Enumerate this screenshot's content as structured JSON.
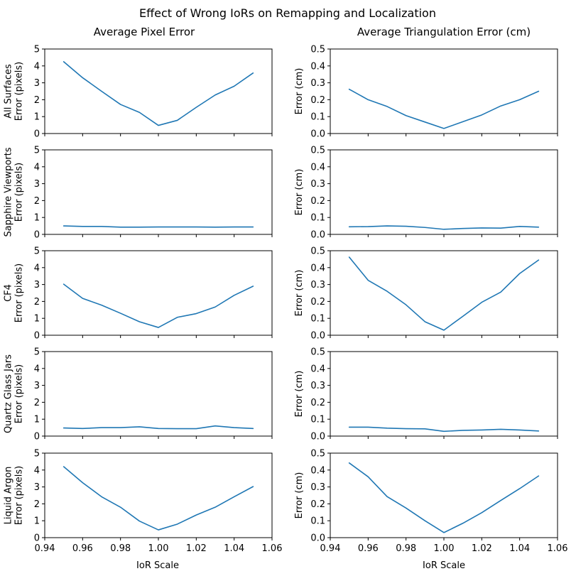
{
  "suptitle": "Effect of Wrong IoRs on Remapping and Localization",
  "column_titles": [
    "Average Pixel Error",
    "Average Triangulation Error (cm)"
  ],
  "x_axis_label": "IoR Scale",
  "colors": {
    "line": "#1f77b4",
    "axes": "#000000",
    "background": "#ffffff"
  },
  "chart_data": [
    {
      "type": "line",
      "row": "All Surfaces",
      "column": "Average Pixel Error",
      "ylabel": [
        "All Surfaces",
        "Error (pixels)"
      ],
      "xlim": [
        0.94,
        1.06
      ],
      "ylim": [
        0,
        5
      ],
      "xticks": [
        "0.94",
        "0.96",
        "0.98",
        "1.00",
        "1.02",
        "1.04",
        "1.06"
      ],
      "yticks": [
        "0",
        "1",
        "2",
        "3",
        "4",
        "5"
      ],
      "show_x_ticklabels": false,
      "grid": false,
      "x": [
        0.95,
        0.96,
        0.97,
        0.98,
        0.99,
        1.0,
        1.01,
        1.02,
        1.03,
        1.04,
        1.05
      ],
      "y": [
        4.25,
        3.3,
        2.5,
        1.72,
        1.25,
        0.48,
        0.78,
        1.55,
        2.28,
        2.8,
        3.58
      ]
    },
    {
      "type": "line",
      "row": "All Surfaces",
      "column": "Average Triangulation Error (cm)",
      "ylabel": [
        "Error (cm)"
      ],
      "xlim": [
        0.94,
        1.06
      ],
      "ylim": [
        0,
        0.5
      ],
      "xticks": [
        "0.94",
        "0.96",
        "0.98",
        "1.00",
        "1.02",
        "1.04",
        "1.06"
      ],
      "yticks": [
        "0.0",
        "0.1",
        "0.2",
        "0.3",
        "0.4",
        "0.5"
      ],
      "show_x_ticklabels": false,
      "grid": false,
      "x": [
        0.95,
        0.96,
        0.97,
        0.98,
        0.99,
        1.0,
        1.01,
        1.02,
        1.03,
        1.04,
        1.05
      ],
      "y": [
        0.262,
        0.2,
        0.16,
        0.106,
        0.068,
        0.03,
        0.07,
        0.11,
        0.163,
        0.2,
        0.25
      ]
    },
    {
      "type": "line",
      "row": "Sapphire Viewports",
      "column": "Average Pixel Error",
      "ylabel": [
        "Sapphire Viewports",
        "Error (pixels)"
      ],
      "xlim": [
        0.94,
        1.06
      ],
      "ylim": [
        0,
        5
      ],
      "xticks": [
        "0.94",
        "0.96",
        "0.98",
        "1.00",
        "1.02",
        "1.04",
        "1.06"
      ],
      "yticks": [
        "0",
        "1",
        "2",
        "3",
        "4",
        "5"
      ],
      "show_x_ticklabels": false,
      "grid": false,
      "x": [
        0.95,
        0.96,
        0.97,
        0.98,
        0.99,
        1.0,
        1.01,
        1.02,
        1.03,
        1.04,
        1.05
      ],
      "y": [
        0.5,
        0.47,
        0.47,
        0.43,
        0.43,
        0.44,
        0.44,
        0.44,
        0.43,
        0.44,
        0.44
      ]
    },
    {
      "type": "line",
      "row": "Sapphire Viewports",
      "column": "Average Triangulation Error (cm)",
      "ylabel": [
        "Error (cm)"
      ],
      "xlim": [
        0.94,
        1.06
      ],
      "ylim": [
        0,
        0.5
      ],
      "xticks": [
        "0.94",
        "0.96",
        "0.98",
        "1.00",
        "1.02",
        "1.04",
        "1.06"
      ],
      "yticks": [
        "0.0",
        "0.1",
        "0.2",
        "0.3",
        "0.4",
        "0.5"
      ],
      "show_x_ticklabels": false,
      "grid": false,
      "x": [
        0.95,
        0.96,
        0.97,
        0.98,
        0.99,
        1.0,
        1.01,
        1.02,
        1.03,
        1.04,
        1.05
      ],
      "y": [
        0.045,
        0.046,
        0.05,
        0.048,
        0.041,
        0.03,
        0.035,
        0.038,
        0.037,
        0.047,
        0.043
      ]
    },
    {
      "type": "line",
      "row": "CF4",
      "column": "Average Pixel Error",
      "ylabel": [
        "CF4",
        "Error (pixels)"
      ],
      "xlim": [
        0.94,
        1.06
      ],
      "ylim": [
        0,
        5
      ],
      "xticks": [
        "0.94",
        "0.96",
        "0.98",
        "1.00",
        "1.02",
        "1.04",
        "1.06"
      ],
      "yticks": [
        "0",
        "1",
        "2",
        "3",
        "4",
        "5"
      ],
      "show_x_ticklabels": false,
      "grid": false,
      "x": [
        0.95,
        0.96,
        0.97,
        0.98,
        0.99,
        1.0,
        1.01,
        1.02,
        1.03,
        1.04,
        1.05
      ],
      "y": [
        3.02,
        2.18,
        1.78,
        1.3,
        0.8,
        0.46,
        1.06,
        1.28,
        1.67,
        2.36,
        2.9
      ]
    },
    {
      "type": "line",
      "row": "CF4",
      "column": "Average Triangulation Error (cm)",
      "ylabel": [
        "Error (cm)"
      ],
      "xlim": [
        0.94,
        1.06
      ],
      "ylim": [
        0,
        0.5
      ],
      "xticks": [
        "0.94",
        "0.96",
        "0.98",
        "1.00",
        "1.02",
        "1.04",
        "1.06"
      ],
      "yticks": [
        "0.0",
        "0.1",
        "0.2",
        "0.3",
        "0.4",
        "0.5"
      ],
      "show_x_ticklabels": false,
      "grid": false,
      "x": [
        0.95,
        0.96,
        0.97,
        0.98,
        0.99,
        1.0,
        1.01,
        1.02,
        1.03,
        1.04,
        1.05
      ],
      "y": [
        0.462,
        0.325,
        0.26,
        0.18,
        0.08,
        0.03,
        0.112,
        0.195,
        0.255,
        0.365,
        0.445
      ]
    },
    {
      "type": "line",
      "row": "Quartz Glass Jars",
      "column": "Average Pixel Error",
      "ylabel": [
        "Quartz Glass Jars",
        "Error (pixels)"
      ],
      "xlim": [
        0.94,
        1.06
      ],
      "ylim": [
        0,
        5
      ],
      "xticks": [
        "0.94",
        "0.96",
        "0.98",
        "1.00",
        "1.02",
        "1.04",
        "1.06"
      ],
      "yticks": [
        "0",
        "1",
        "2",
        "3",
        "4",
        "5"
      ],
      "show_x_ticklabels": false,
      "grid": false,
      "x": [
        0.95,
        0.96,
        0.97,
        0.98,
        0.99,
        1.0,
        1.01,
        1.02,
        1.03,
        1.04,
        1.05
      ],
      "y": [
        0.48,
        0.45,
        0.5,
        0.5,
        0.55,
        0.45,
        0.44,
        0.44,
        0.6,
        0.5,
        0.45
      ]
    },
    {
      "type": "line",
      "row": "Quartz Glass Jars",
      "column": "Average Triangulation Error (cm)",
      "ylabel": [
        "Error (cm)"
      ],
      "xlim": [
        0.94,
        1.06
      ],
      "ylim": [
        0,
        0.5
      ],
      "xticks": [
        "0.94",
        "0.96",
        "0.98",
        "1.00",
        "1.02",
        "1.04",
        "1.06"
      ],
      "yticks": [
        "0.0",
        "0.1",
        "0.2",
        "0.3",
        "0.4",
        "0.5"
      ],
      "show_x_ticklabels": false,
      "grid": false,
      "x": [
        0.95,
        0.96,
        0.97,
        0.98,
        0.99,
        1.0,
        1.01,
        1.02,
        1.03,
        1.04,
        1.05
      ],
      "y": [
        0.053,
        0.053,
        0.047,
        0.044,
        0.043,
        0.028,
        0.034,
        0.036,
        0.04,
        0.036,
        0.03
      ]
    },
    {
      "type": "line",
      "row": "Liquid Argon",
      "column": "Average Pixel Error",
      "ylabel": [
        "Liquid Argon",
        "Error (pixels)"
      ],
      "xlim": [
        0.94,
        1.06
      ],
      "ylim": [
        0,
        5
      ],
      "xticks": [
        "0.94",
        "0.96",
        "0.98",
        "1.00",
        "1.02",
        "1.04",
        "1.06"
      ],
      "yticks": [
        "0",
        "1",
        "2",
        "3",
        "4",
        "5"
      ],
      "show_x_ticklabels": true,
      "grid": false,
      "x": [
        0.95,
        0.96,
        0.97,
        0.98,
        0.99,
        1.0,
        1.01,
        1.02,
        1.03,
        1.04,
        1.05
      ],
      "y": [
        4.2,
        3.25,
        2.42,
        1.8,
        0.98,
        0.46,
        0.8,
        1.34,
        1.8,
        2.42,
        3.02
      ]
    },
    {
      "type": "line",
      "row": "Liquid Argon",
      "column": "Average Triangulation Error (cm)",
      "ylabel": [
        "Error (cm)"
      ],
      "xlim": [
        0.94,
        1.06
      ],
      "ylim": [
        0,
        0.5
      ],
      "xticks": [
        "0.94",
        "0.96",
        "0.98",
        "1.00",
        "1.02",
        "1.04",
        "1.06"
      ],
      "yticks": [
        "0.0",
        "0.1",
        "0.2",
        "0.3",
        "0.4",
        "0.5"
      ],
      "show_x_ticklabels": true,
      "grid": false,
      "x": [
        0.95,
        0.96,
        0.97,
        0.98,
        0.99,
        1.0,
        1.01,
        1.02,
        1.03,
        1.04,
        1.05
      ],
      "y": [
        0.442,
        0.36,
        0.243,
        0.175,
        0.1,
        0.03,
        0.085,
        0.148,
        0.22,
        0.29,
        0.365
      ]
    }
  ]
}
